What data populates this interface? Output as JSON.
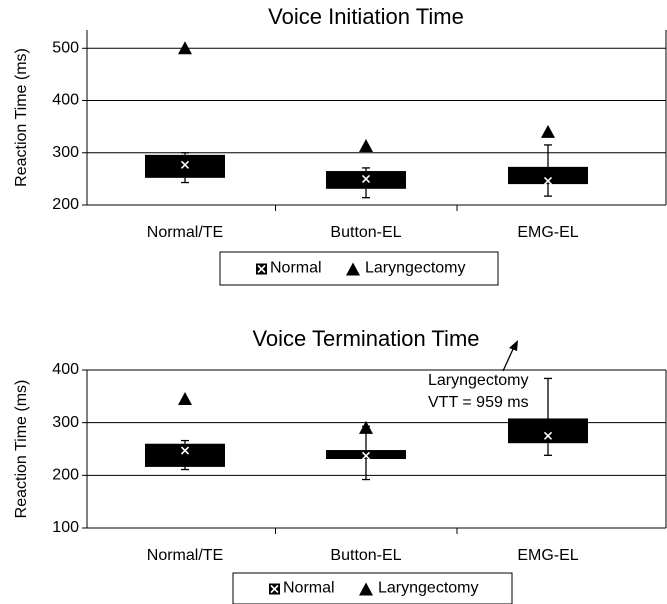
{
  "chart_data": [
    {
      "type": "box",
      "title": "Voice Initiation Time",
      "y_label": "Reaction Time (ms)",
      "categories": [
        "Normal/TE",
        "Button-EL",
        "EMG-EL"
      ],
      "ylim": [
        200,
        535
      ],
      "yticks": [
        200,
        300,
        400,
        500
      ],
      "grid": true,
      "series": [
        {
          "name": "Normal",
          "color": "#000000",
          "q1": [
            252,
            231,
            240
          ],
          "q3": [
            296,
            265,
            273
          ],
          "whisker_low": [
            243,
            214,
            217
          ],
          "whisker_high": [
            300,
            271,
            315
          ],
          "mean": [
            277,
            250,
            246
          ]
        },
        {
          "name": "Laryngectomy",
          "color": "#000000",
          "values": [
            500,
            313,
            340
          ]
        }
      ]
    },
    {
      "type": "box",
      "title": "Voice Termination Time",
      "y_label": "Reaction Time (ms)",
      "categories": [
        "Normal/TE",
        "Button-EL",
        "EMG-EL"
      ],
      "ylim": [
        100,
        400
      ],
      "yticks": [
        100,
        200,
        300,
        400
      ],
      "grid": true,
      "series": [
        {
          "name": "Normal",
          "color": "#000000",
          "q1": [
            216,
            231,
            261
          ],
          "q3": [
            260,
            248,
            308
          ],
          "whisker_low": [
            211,
            192,
            238
          ],
          "whisker_high": [
            266,
            293,
            384
          ],
          "mean": [
            247,
            237,
            275
          ]
        },
        {
          "name": "Laryngectomy",
          "color": "#000000",
          "values": [
            345,
            290,
            null
          ]
        }
      ],
      "annotation": [
        "Laryngectomy",
        "VTT = 959 ms"
      ]
    }
  ]
}
